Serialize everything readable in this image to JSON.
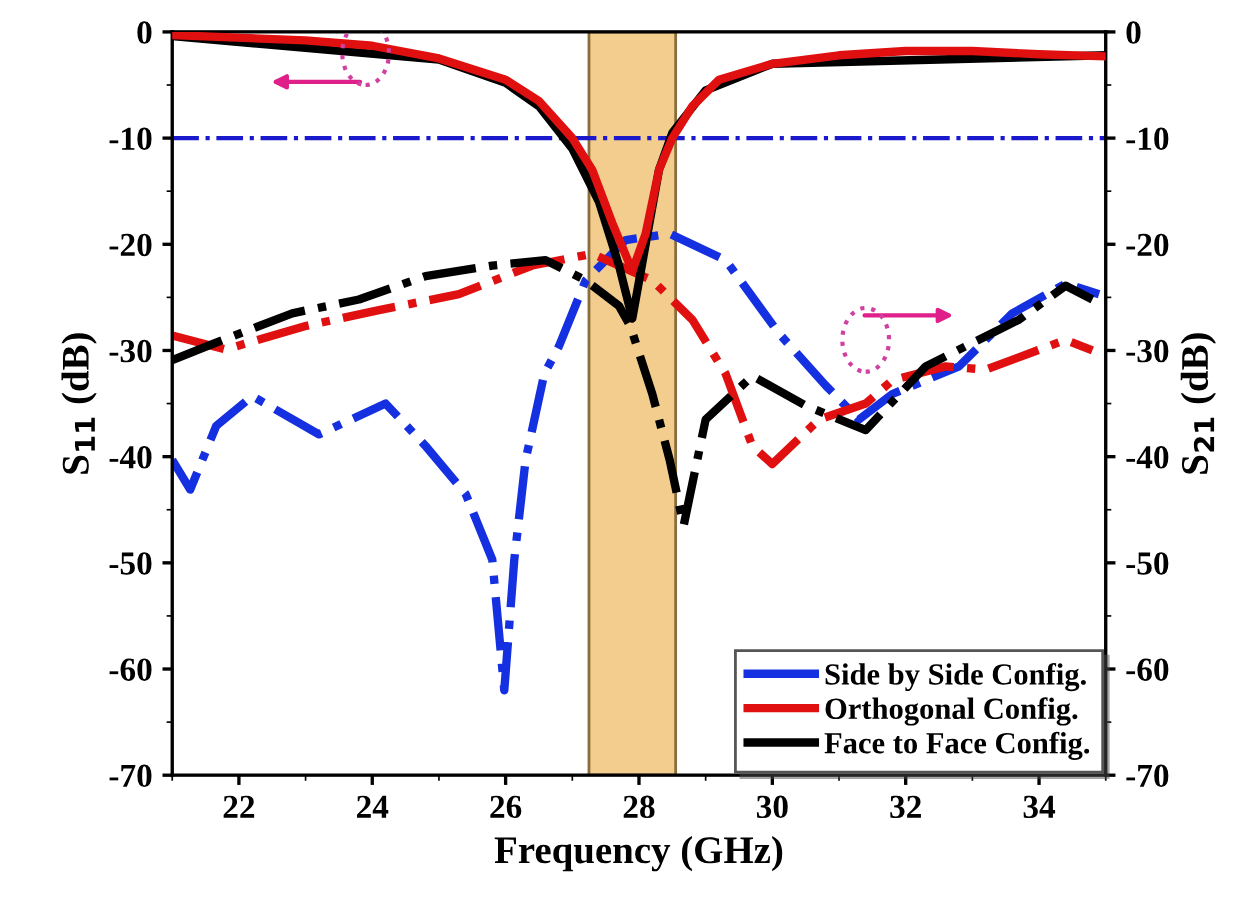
{
  "chart_data": {
    "type": "line",
    "xlabel": "Frequency (GHz)",
    "ylabel": "S$_{11}$ (dB)",
    "y2label": "S$_{21}$ (dB)",
    "xlim": [
      21,
      35
    ],
    "xticks": [
      22,
      24,
      26,
      28,
      30,
      32,
      34
    ],
    "ylim": [
      -70,
      0
    ],
    "yticks": [
      -70,
      -60,
      -50,
      -40,
      -30,
      -20,
      -10,
      0
    ],
    "y2lim": [
      -70,
      0
    ],
    "y2ticks": [
      -70,
      -60,
      -50,
      -40,
      -30,
      -20,
      -10,
      0
    ],
    "grid": false,
    "legend": "bottom right",
    "marker": "none",
    "ref_lines": [
      {
        "axis": "y",
        "value": -10,
        "color": "#1a1acc",
        "line_style": "dashdot"
      }
    ],
    "bands": [
      {
        "axis": "x",
        "from": 27.25,
        "to": 28.55,
        "color": "#f2cd8e"
      }
    ],
    "series": [
      {
        "color": "#000000",
        "line_style": "solid",
        "x": [
          21,
          25,
          26,
          26.5,
          27,
          27.4,
          27.7,
          27.9,
          28.1,
          28.3,
          28.5,
          29,
          30,
          35
        ],
        "values": [
          -0.4,
          -2.6,
          -4.8,
          -7,
          -11,
          -16,
          -22,
          -27,
          -20,
          -13,
          -9.5,
          -5.5,
          -3,
          -2.2
        ]
      },
      {
        "color": "#e01010",
        "line_style": "solid",
        "x": [
          21,
          23,
          24,
          25,
          26,
          26.5,
          27,
          27.3,
          27.6,
          27.9,
          28.1,
          28.3,
          28.5,
          28.8,
          29.2,
          30,
          31,
          32,
          33,
          34,
          35
        ],
        "values": [
          -0.3,
          -0.8,
          -1.3,
          -2.5,
          -4.5,
          -6.5,
          -10,
          -13,
          -18,
          -22.5,
          -19,
          -13,
          -10,
          -7,
          -4.5,
          -3,
          -2.2,
          -1.8,
          -1.8,
          -2.1,
          -2.3
        ]
      },
      {
        "name": "Side by Side Config.",
        "color": "#1530e0",
        "line_style": "dashdot",
        "axis": "y2",
        "x": [
          21.0,
          21.27,
          21.66,
          22.2,
          23.2,
          24.2,
          24.8,
          25.4,
          25.8,
          25.98,
          26.13,
          26.3,
          26.58,
          26.8,
          27.2,
          27.8,
          28.46,
          29.3,
          30.1,
          30.8,
          31.3,
          31.8,
          32.8,
          33.6,
          34.4,
          34.9
        ],
        "values": [
          -40.3,
          -43.1,
          -37.1,
          -34.3,
          -37.9,
          -35,
          -39,
          -43.5,
          -49.7,
          -62,
          -49.7,
          -40.3,
          -32.2,
          -29.6,
          -23.4,
          -19.6,
          -19,
          -21.5,
          -28.4,
          -33.3,
          -36.5,
          -34.1,
          -31.5,
          -26.5,
          -23.7,
          -24.7
        ]
      },
      {
        "name": "Orthogonal Config.",
        "color": "#e01010",
        "line_style": "dashdot",
        "axis": "y2",
        "x": [
          21.0,
          21.8,
          23.0,
          24.1,
          25.3,
          26.4,
          27.3,
          28.2,
          28.8,
          29.3,
          29.7,
          30.0,
          30.7,
          31.4,
          31.8,
          32.6,
          33.2,
          34.4,
          34.8
        ],
        "values": [
          -28.6,
          -29.9,
          -27.7,
          -26.2,
          -24.7,
          -22,
          -20.9,
          -23.4,
          -27.1,
          -32.2,
          -39,
          -40.7,
          -36.5,
          -35,
          -32.8,
          -31.5,
          -31.8,
          -29,
          -30
        ]
      },
      {
        "name": "Face to Face Config.",
        "color": "#000000",
        "line_style": "dashdot",
        "axis": "y2",
        "x": [
          21.0,
          21.6,
          22.8,
          23.8,
          24.8,
          25.8,
          26.6,
          27.2,
          27.7,
          27.87,
          28.2,
          28.46,
          28.67,
          29.0,
          29.7,
          30.5,
          31.4,
          32.3,
          32.9,
          33.7,
          34.4,
          34.8
        ],
        "values": [
          -30.9,
          -29.4,
          -26.5,
          -25.2,
          -23,
          -22,
          -21.5,
          -23.4,
          -25.8,
          -27.7,
          -34.1,
          -40.3,
          -46.5,
          -36.5,
          -32.4,
          -35.2,
          -37.5,
          -31.5,
          -29.6,
          -27.1,
          -23.9,
          -25.2
        ]
      }
    ]
  }
}
